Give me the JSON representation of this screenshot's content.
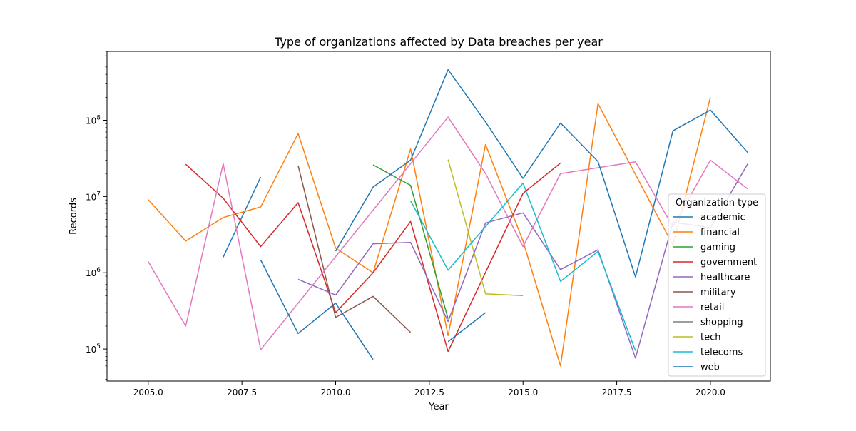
{
  "chart_data": {
    "type": "line",
    "title": "Type of organizations affected by Data breaches per year",
    "xlabel": "Year",
    "ylabel": "Records",
    "yscale": "log",
    "xlim": [
      2003.9,
      2021.6
    ],
    "ylim": [
      38000,
      800000000
    ],
    "x_ticks": [
      2005.0,
      2007.5,
      2010.0,
      2012.5,
      2015.0,
      2017.5,
      2020.0
    ],
    "x_tick_labels": [
      "2005.0",
      "2007.5",
      "2010.0",
      "2012.5",
      "2015.0",
      "2017.5",
      "2020.0"
    ],
    "y_ticks": [
      100000,
      1000000,
      10000000,
      100000000
    ],
    "y_tick_labels": [
      {
        "base": "10",
        "exp": "5"
      },
      {
        "base": "10",
        "exp": "6"
      },
      {
        "base": "10",
        "exp": "7"
      },
      {
        "base": "10",
        "exp": "8"
      }
    ],
    "legend": {
      "title": "Organization type",
      "placement": "lower-right"
    },
    "grid": false,
    "series": [
      {
        "name": "academic",
        "color": "#1f77b4",
        "points": [
          [
            2007,
            1600000
          ],
          [
            2008,
            18000000
          ]
        ]
      },
      {
        "name": "financial",
        "color": "#ff7f0e",
        "points": [
          [
            2005,
            9100000
          ],
          [
            2006,
            2600000
          ],
          [
            2007,
            5300000
          ],
          [
            2008,
            7300000
          ],
          [
            2009,
            67000000
          ],
          [
            2010,
            2100000
          ],
          [
            2011,
            1000000
          ],
          [
            2012,
            42000000
          ],
          [
            2013,
            150000
          ],
          [
            2014,
            48000000
          ],
          [
            2015,
            2600000
          ],
          [
            2016,
            60000
          ],
          [
            2017,
            165000000
          ],
          [
            2019,
            2300000
          ],
          [
            2020,
            200000000
          ]
        ]
      },
      {
        "name": "gaming",
        "color": "#2ca02c",
        "points": [
          [
            2011,
            26000000
          ],
          [
            2012,
            14000000
          ],
          [
            2013,
            250000
          ]
        ]
      },
      {
        "name": "government",
        "color": "#d62728",
        "points": [
          [
            2006,
            26500000
          ],
          [
            2007,
            9500000
          ],
          [
            2008,
            2200000
          ],
          [
            2009,
            8300000
          ],
          [
            2010,
            300000
          ],
          [
            2011,
            1000000
          ],
          [
            2012,
            4700000
          ],
          [
            2013,
            93000
          ],
          [
            2015,
            11000000
          ],
          [
            2016,
            27500000
          ]
        ]
      },
      {
        "name": "healthcare",
        "color": "#9467bd",
        "points": [
          [
            2009,
            820000
          ],
          [
            2010,
            510000
          ],
          [
            2011,
            2400000
          ],
          [
            2012,
            2500000
          ],
          [
            2013,
            230000
          ],
          [
            2014,
            4500000
          ],
          [
            2015,
            6100000
          ],
          [
            2016,
            1100000
          ],
          [
            2017,
            2000000
          ],
          [
            2018,
            76000
          ],
          [
            2019,
            4600000
          ],
          [
            2020,
            3900000
          ],
          [
            2021,
            27000000
          ]
        ]
      },
      {
        "name": "military",
        "color": "#8c564b",
        "points": [
          [
            2009,
            25500000
          ],
          [
            2010,
            260000
          ],
          [
            2011,
            490000
          ],
          [
            2012,
            165000
          ]
        ]
      },
      {
        "name": "retail",
        "color": "#e377c2",
        "points": [
          [
            2005,
            1400000
          ],
          [
            2006,
            200000
          ],
          [
            2007,
            27000000
          ],
          [
            2008,
            98000
          ],
          [
            2013,
            110000000
          ],
          [
            2014,
            20000000
          ],
          [
            2015,
            2200000
          ],
          [
            2016,
            20000000
          ],
          [
            2018,
            28500000
          ],
          [
            2019,
            4000000
          ],
          [
            2020,
            30000000
          ],
          [
            2021,
            12500000
          ]
        ]
      },
      {
        "name": "shopping",
        "color": "#7f7f7f",
        "points": []
      },
      {
        "name": "tech",
        "color": "#bcbd22",
        "points": [
          [
            2013,
            30500000
          ],
          [
            2014,
            530000
          ],
          [
            2015,
            500000
          ]
        ]
      },
      {
        "name": "telecoms",
        "color": "#17becf",
        "points": [
          [
            2012,
            8800000
          ],
          [
            2013,
            1080000
          ],
          [
            2015,
            15000000
          ],
          [
            2016,
            770000
          ],
          [
            2017,
            1900000
          ],
          [
            2018,
            95000
          ]
        ]
      },
      {
        "name": "web",
        "color": "#1f77b4",
        "segments": [
          [
            [
              2008,
              1470000
            ],
            [
              2009,
              160000
            ],
            [
              2010,
              400000
            ],
            [
              2011,
              73000
            ]
          ],
          [
            [
              2010,
              1920000
            ],
            [
              2011,
              13300000
            ],
            [
              2012,
              30000000
            ],
            [
              2013,
              460000000
            ],
            [
              2014,
              95000000
            ],
            [
              2015,
              17300000
            ],
            [
              2016,
              92000000
            ],
            [
              2017,
              28800000
            ],
            [
              2018,
              880000
            ],
            [
              2019,
              72700000
            ],
            [
              2020,
              136000000
            ],
            [
              2021,
              37500000
            ]
          ],
          [
            [
              2013,
              125000
            ],
            [
              2014,
              300000
            ]
          ]
        ]
      }
    ]
  }
}
